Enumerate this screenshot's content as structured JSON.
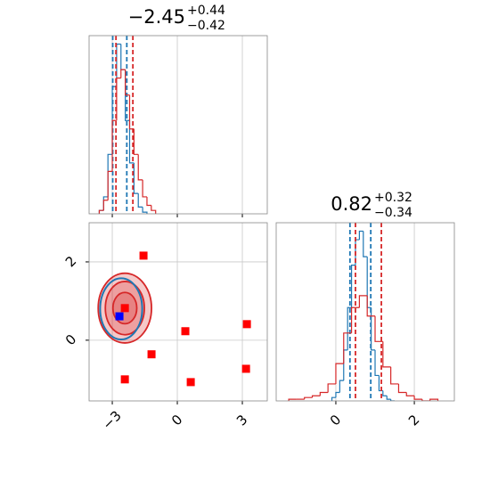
{
  "chart_data": [
    {
      "type": "histogram",
      "title": {
        "main": "−2.45",
        "plus": "+0.44",
        "minus": "−0.42"
      },
      "xlim": [
        -4.07,
        4.15
      ],
      "xticks": [
        -3,
        0,
        3
      ],
      "ylim": [
        0,
        1.05
      ],
      "grid": true,
      "series": [
        {
          "color": "#1f77b4",
          "bins": [
            -3.6,
            -3.4,
            -3.2,
            -3.0,
            -2.8,
            -2.6,
            -2.4,
            -2.2,
            -2.0,
            -1.8,
            -1.6,
            -1.4
          ],
          "values": [
            0.02,
            0.1,
            0.35,
            0.75,
            1.0,
            0.85,
            0.55,
            0.3,
            0.12,
            0.04,
            0.01
          ],
          "quantiles": [
            -2.98,
            -2.33
          ]
        },
        {
          "color": "#d62728",
          "bins": [
            -3.6,
            -3.4,
            -3.2,
            -3.0,
            -2.8,
            -2.6,
            -2.4,
            -2.2,
            -2.0,
            -1.8,
            -1.6,
            -1.4,
            -1.2,
            -1.0
          ],
          "values": [
            0.02,
            0.08,
            0.25,
            0.55,
            0.8,
            0.85,
            0.7,
            0.5,
            0.35,
            0.2,
            0.1,
            0.05,
            0.02
          ],
          "quantiles": [
            -2.83,
            -2.05
          ]
        }
      ]
    },
    {
      "type": "scatter",
      "xlim": [
        -4.07,
        4.15
      ],
      "xticks": [
        {
          "value": -3,
          "label": "−3"
        },
        0,
        3
      ],
      "ylim": [
        -1.55,
        3.0
      ],
      "yticks": [
        0,
        2
      ],
      "grid": true,
      "contours": [
        {
          "color": "#d62728",
          "cx": -2.42,
          "cy": 0.82,
          "rx": [
            1.23,
            0.9,
            0.55
          ],
          "ry": [
            0.89,
            0.68,
            0.4
          ]
        },
        {
          "color": "#1f77b4",
          "cx": -2.59,
          "cy": 0.8,
          "rx": [
            0.97
          ],
          "ry": [
            0.78
          ]
        }
      ],
      "series": [
        {
          "color": "#ff0000",
          "x": [
            -1.56,
            0.37,
            3.21,
            -1.19,
            -2.42,
            0.62,
            3.17,
            -2.42
          ],
          "y": [
            2.16,
            0.23,
            0.41,
            -0.36,
            -1.0,
            -1.07,
            -0.73,
            0.82
          ]
        },
        {
          "color": "#0000ff",
          "x": [
            -2.67
          ],
          "y": [
            0.61
          ]
        }
      ]
    },
    {
      "type": "histogram",
      "title": {
        "main": "0.82",
        "plus": "+0.32",
        "minus": "−0.34"
      },
      "xlim": [
        -1.52,
        3.02
      ],
      "xticks": [
        0,
        2
      ],
      "ylim": [
        0,
        1.05
      ],
      "grid": true,
      "series": [
        {
          "color": "#1f77b4",
          "bins": [
            -0.1,
            0.0,
            0.1,
            0.2,
            0.3,
            0.4,
            0.5,
            0.6,
            0.7,
            0.8,
            0.9,
            1.0,
            1.1,
            1.2,
            1.3,
            1.4,
            1.5
          ],
          "values": [
            0.02,
            0.05,
            0.12,
            0.3,
            0.55,
            0.8,
            0.95,
            1.0,
            0.85,
            0.55,
            0.3,
            0.15,
            0.06,
            0.03,
            0.01,
            0.0
          ],
          "quantiles": [
            0.36,
            0.89
          ]
        },
        {
          "color": "#d62728",
          "bins": [
            -1.2,
            -1.0,
            -0.8,
            -0.6,
            -0.4,
            -0.2,
            0.0,
            0.2,
            0.4,
            0.6,
            0.8,
            1.0,
            1.2,
            1.4,
            1.6,
            1.8,
            2.0,
            2.2,
            2.4,
            2.6
          ],
          "values": [
            0.01,
            0.01,
            0.02,
            0.03,
            0.05,
            0.1,
            0.22,
            0.4,
            0.55,
            0.62,
            0.5,
            0.35,
            0.2,
            0.1,
            0.05,
            0.03,
            0.01,
            0.0,
            0.01
          ],
          "quantiles": [
            0.5,
            1.16
          ]
        }
      ]
    }
  ]
}
